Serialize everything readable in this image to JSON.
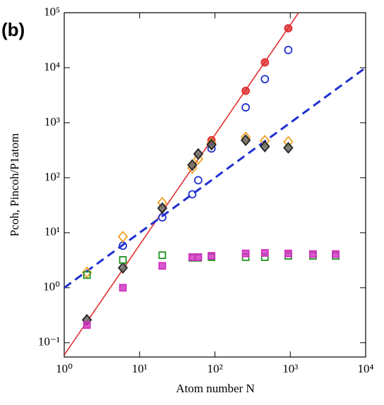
{
  "chart_data": {
    "type": "scatter",
    "panel_label": "(b)",
    "x_label": "Atom number N",
    "y_label": "Pcoh, Pincoh/P1atom",
    "log_x": true,
    "log_y": true,
    "xlim": [
      1,
      10000
    ],
    "ylim": [
      0.055,
      100000
    ],
    "xticks": [
      {
        "value": 1,
        "label": "10⁰"
      },
      {
        "value": 10,
        "label": "10¹"
      },
      {
        "value": 100,
        "label": "10²"
      },
      {
        "value": 1000,
        "label": "10³"
      },
      {
        "value": 10000,
        "label": "10⁴"
      }
    ],
    "yticks": [
      {
        "value": 0.1,
        "label": "10⁻¹"
      },
      {
        "value": 1,
        "label": "10⁰"
      },
      {
        "value": 10,
        "label": "10¹"
      },
      {
        "value": 100,
        "label": "10²"
      },
      {
        "value": 1000,
        "label": "10³"
      },
      {
        "value": 10000,
        "label": "10⁴"
      },
      {
        "value": 100000,
        "label": "10⁵"
      }
    ],
    "series": [
      {
        "kind": "line",
        "style": "solid",
        "color": "#e03030",
        "x": [
          1,
          1290
        ],
        "values": [
          0.06,
          100000
        ]
      },
      {
        "kind": "line",
        "style": "dashed",
        "color": "#2030d0",
        "x": [
          1,
          10000
        ],
        "values": [
          1,
          10000
        ]
      },
      {
        "kind": "marker",
        "marker": "circle",
        "filled": true,
        "color": "#e03030",
        "x": [
          90,
          256,
          460,
          940
        ],
        "values": [
          480,
          3800,
          12500,
          52000
        ]
      },
      {
        "kind": "marker",
        "marker": "circle",
        "filled": false,
        "color": "#2030d0",
        "x": [
          6,
          20,
          50,
          60,
          90,
          256,
          460,
          940
        ],
        "values": [
          5.8,
          19,
          50,
          90,
          340,
          1900,
          6200,
          21000
        ]
      },
      {
        "kind": "marker",
        "marker": "diamond",
        "filled": false,
        "color": "#f0a020",
        "x": [
          2,
          6,
          20,
          50,
          60,
          90,
          256,
          460,
          940
        ],
        "values": [
          1.9,
          8.5,
          35,
          150,
          220,
          420,
          540,
          470,
          450
        ]
      },
      {
        "kind": "marker",
        "marker": "diamond",
        "filled": true,
        "color": "#606060",
        "x": [
          2,
          6,
          20,
          50,
          60,
          90,
          256,
          460,
          940
        ],
        "values": [
          0.26,
          2.3,
          28,
          170,
          270,
          400,
          480,
          370,
          350
        ]
      },
      {
        "kind": "marker",
        "marker": "square",
        "filled": false,
        "color": "#209020",
        "x": [
          2,
          6,
          20,
          50,
          60,
          90,
          256,
          460,
          940,
          2000,
          4000
        ],
        "values": [
          1.7,
          3.2,
          3.9,
          3.5,
          3.5,
          3.6,
          3.6,
          3.6,
          3.8,
          3.8,
          3.8
        ]
      },
      {
        "kind": "marker",
        "marker": "square",
        "filled": true,
        "color": "#d030c0",
        "x": [
          2,
          6,
          20,
          50,
          60,
          90,
          256,
          460,
          940,
          2000,
          4000
        ],
        "values": [
          0.21,
          1.0,
          2.5,
          3.6,
          3.6,
          3.8,
          4.2,
          4.3,
          4.2,
          4.1,
          4.1
        ]
      }
    ]
  }
}
